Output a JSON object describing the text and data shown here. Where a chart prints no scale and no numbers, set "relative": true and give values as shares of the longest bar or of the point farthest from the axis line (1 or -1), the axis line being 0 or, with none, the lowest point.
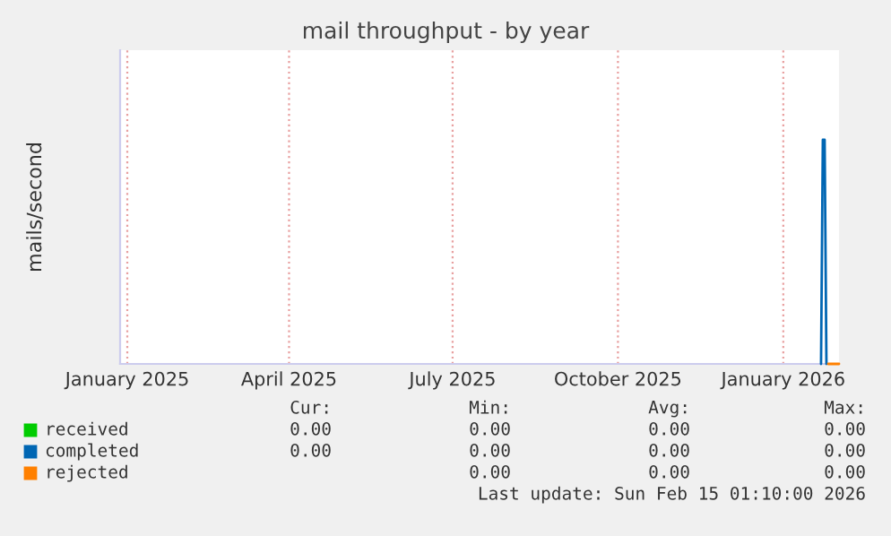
{
  "chart_data": {
    "type": "line",
    "title": "mail throughput - by year",
    "ylabel": "mails/second",
    "relative": true,
    "xlim": [
      "2024-12-28",
      "2026-02-01"
    ],
    "xticks": [
      {
        "value": "2025-01-01",
        "label": "January 2025"
      },
      {
        "value": "2025-04-01",
        "label": "April 2025"
      },
      {
        "value": "2025-07-01",
        "label": "July 2025"
      },
      {
        "value": "2025-10-01",
        "label": "October 2025"
      },
      {
        "value": "2026-01-01",
        "label": "January 2026"
      }
    ],
    "series": [
      {
        "name": "received",
        "color": "#00cc00"
      },
      {
        "name": "completed",
        "color": "#0066b3",
        "x": [
          "2026-01-22",
          "2026-01-23",
          "2026-01-24",
          "2026-01-25"
        ],
        "values": [
          0,
          1,
          1,
          0
        ]
      },
      {
        "name": "rejected",
        "color": "#ff8000",
        "x": [
          "2026-01-26",
          "2026-02-01"
        ],
        "values": [
          0,
          0
        ]
      }
    ],
    "grid": "x",
    "legend": "bottom",
    "annotations": [
      "Cur:",
      "Min:",
      "Avg:",
      "Max:",
      "0.00",
      "0.00",
      "0.00",
      "0.00",
      "0.00",
      "0.00",
      "0.00",
      "0.00",
      "0.00",
      "0.00",
      "0.00",
      "Last update: Sun Feb 15 01:10:00 2026"
    ]
  }
}
